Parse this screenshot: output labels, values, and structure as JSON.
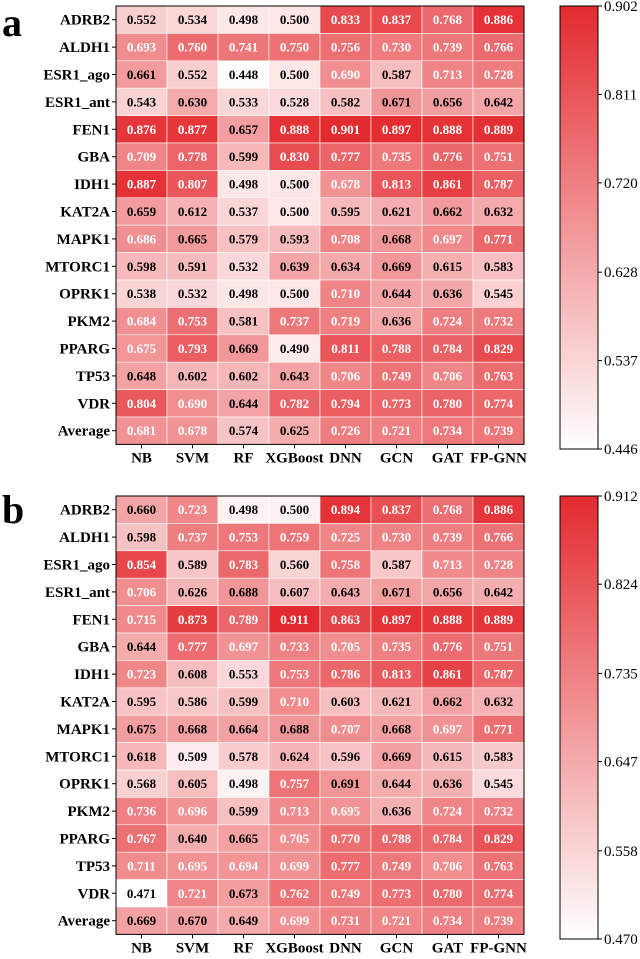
{
  "chart_data": [
    {
      "type": "heatmap",
      "panel_label": "a",
      "rows": [
        "ADRB2",
        "ALDH1",
        "ESR1_ago",
        "ESR1_ant",
        "FEN1",
        "GBA",
        "IDH1",
        "KAT2A",
        "MAPK1",
        "MTORC1",
        "OPRK1",
        "PKM2",
        "PPARG",
        "TP53",
        "VDR",
        "Average"
      ],
      "columns": [
        "NB",
        "SVM",
        "RF",
        "XGBoost",
        "DNN",
        "GCN",
        "GAT",
        "FP-GNN"
      ],
      "values": [
        [
          "0.552",
          "0.534",
          "0.498",
          "0.500",
          "0.833",
          "0.837",
          "0.768",
          "0.886"
        ],
        [
          "0.693",
          "0.760",
          "0.741",
          "0.750",
          "0.756",
          "0.730",
          "0.739",
          "0.766"
        ],
        [
          "0.661",
          "0.552",
          "0.448",
          "0.500",
          "0.690",
          "0.587",
          "0.713",
          "0.728"
        ],
        [
          "0.543",
          "0.630",
          "0.533",
          "0.528",
          "0.582",
          "0.671",
          "0.656",
          "0.642"
        ],
        [
          "0.876",
          "0.877",
          "0.657",
          "0.888",
          "0.901",
          "0.897",
          "0.888",
          "0.889"
        ],
        [
          "0.709",
          "0.778",
          "0.599",
          "0.830",
          "0.777",
          "0.735",
          "0.776",
          "0.751"
        ],
        [
          "0.887",
          "0.807",
          "0.498",
          "0.500",
          "0.678",
          "0.813",
          "0.861",
          "0.787"
        ],
        [
          "0.659",
          "0.612",
          "0.537",
          "0.500",
          "0.595",
          "0.621",
          "0.662",
          "0.632"
        ],
        [
          "0.686",
          "0.665",
          "0.579",
          "0.593",
          "0.708",
          "0.668",
          "0.697",
          "0.771"
        ],
        [
          "0.598",
          "0.591",
          "0.532",
          "0.639",
          "0.634",
          "0.669",
          "0.615",
          "0.583"
        ],
        [
          "0.538",
          "0.532",
          "0.498",
          "0.500",
          "0.710",
          "0.644",
          "0.636",
          "0.545"
        ],
        [
          "0.684",
          "0.753",
          "0.581",
          "0.737",
          "0.719",
          "0.636",
          "0.724",
          "0.732"
        ],
        [
          "0.675",
          "0.793",
          "0.669",
          "0.490",
          "0.811",
          "0.788",
          "0.784",
          "0.829"
        ],
        [
          "0.648",
          "0.602",
          "0.602",
          "0.643",
          "0.706",
          "0.749",
          "0.706",
          "0.763"
        ],
        [
          "0.804",
          "0.690",
          "0.644",
          "0.782",
          "0.794",
          "0.773",
          "0.780",
          "0.774"
        ],
        [
          "0.681",
          "0.678",
          "0.574",
          "0.625",
          "0.726",
          "0.721",
          "0.734",
          "0.739"
        ]
      ],
      "colorbar": {
        "min": 0.446,
        "max": 0.902,
        "ticks": [
          "0.446",
          "0.537",
          "0.628",
          "0.720",
          "0.811",
          "0.902"
        ],
        "low_color": "#ffffff",
        "high_color": "#e32b2f"
      }
    },
    {
      "type": "heatmap",
      "panel_label": "b",
      "rows": [
        "ADRB2",
        "ALDH1",
        "ESR1_ago",
        "ESR1_ant",
        "FEN1",
        "GBA",
        "IDH1",
        "KAT2A",
        "MAPK1",
        "MTORC1",
        "OPRK1",
        "PKM2",
        "PPARG",
        "TP53",
        "VDR",
        "Average"
      ],
      "columns": [
        "NB",
        "SVM",
        "RF",
        "XGBoost",
        "DNN",
        "GCN",
        "GAT",
        "FP-GNN"
      ],
      "values": [
        [
          "0.660",
          "0.723",
          "0.498",
          "0.500",
          "0.894",
          "0.837",
          "0.768",
          "0.886"
        ],
        [
          "0.598",
          "0.737",
          "0.753",
          "0.759",
          "0.725",
          "0.730",
          "0.739",
          "0.766"
        ],
        [
          "0.854",
          "0.589",
          "0.783",
          "0.560",
          "0.758",
          "0.587",
          "0.713",
          "0.728"
        ],
        [
          "0.706",
          "0.626",
          "0.688",
          "0.607",
          "0.643",
          "0.671",
          "0.656",
          "0.642"
        ],
        [
          "0.715",
          "0.873",
          "0.789",
          "0.911",
          "0.863",
          "0.897",
          "0.888",
          "0.889"
        ],
        [
          "0.644",
          "0.777",
          "0.697",
          "0.733",
          "0.705",
          "0.735",
          "0.776",
          "0.751"
        ],
        [
          "0.723",
          "0.608",
          "0.553",
          "0.753",
          "0.786",
          "0.813",
          "0.861",
          "0.787"
        ],
        [
          "0.595",
          "0.586",
          "0.599",
          "0.710",
          "0.603",
          "0.621",
          "0.662",
          "0.632"
        ],
        [
          "0.675",
          "0.668",
          "0.664",
          "0.688",
          "0.707",
          "0.668",
          "0.697",
          "0.771"
        ],
        [
          "0.618",
          "0.509",
          "0.578",
          "0.624",
          "0.596",
          "0.669",
          "0.615",
          "0.583"
        ],
        [
          "0.568",
          "0.605",
          "0.498",
          "0.757",
          "0.691",
          "0.644",
          "0.636",
          "0.545"
        ],
        [
          "0.736",
          "0.696",
          "0.599",
          "0.713",
          "0.695",
          "0.636",
          "0.724",
          "0.732"
        ],
        [
          "0.767",
          "0.640",
          "0.665",
          "0.705",
          "0.770",
          "0.788",
          "0.784",
          "0.829"
        ],
        [
          "0.711",
          "0.695",
          "0.694",
          "0.699",
          "0.777",
          "0.749",
          "0.706",
          "0.763"
        ],
        [
          "0.471",
          "0.721",
          "0.673",
          "0.762",
          "0.749",
          "0.773",
          "0.780",
          "0.774"
        ],
        [
          "0.669",
          "0.670",
          "0.649",
          "0.699",
          "0.731",
          "0.721",
          "0.734",
          "0.739"
        ]
      ],
      "colorbar": {
        "min": 0.47,
        "max": 0.912,
        "ticks": [
          "0.470",
          "0.558",
          "0.647",
          "0.735",
          "0.824",
          "0.912"
        ],
        "low_color": "#ffffff",
        "high_color": "#e32b2f"
      }
    }
  ]
}
